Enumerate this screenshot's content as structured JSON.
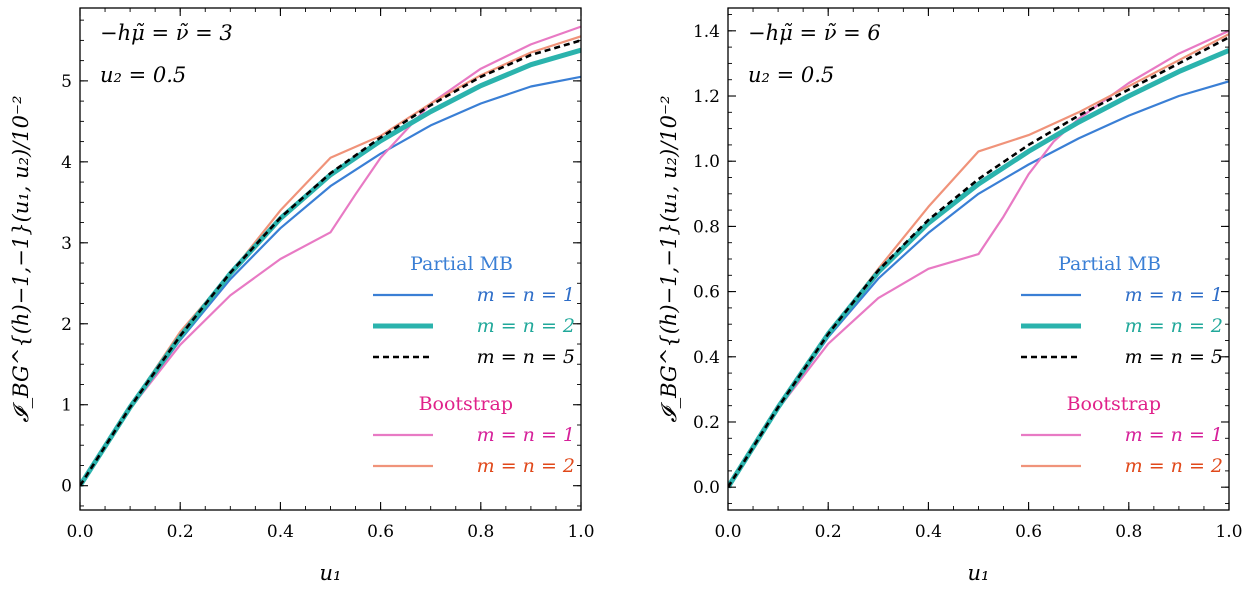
{
  "chart_data": [
    {
      "type": "line",
      "annotations": [
        "−hμ̃ = ν̃ = 3",
        "u₂ = 0.5"
      ],
      "xlabel": "u₁",
      "ylabel": "𝓘_BG^{(h)−1,−1}(u₁, u₂)/10⁻²",
      "xlim": [
        0.0,
        1.0
      ],
      "ylim": [
        -0.3,
        5.9
      ],
      "xticks": [
        0.0,
        0.2,
        0.4,
        0.6,
        0.8,
        1.0
      ],
      "xtick_labels": [
        "0.0",
        "0.2",
        "0.4",
        "0.6",
        "0.8",
        "1.0"
      ],
      "yticks": [
        0,
        1,
        2,
        3,
        4,
        5
      ],
      "ytick_labels": [
        "0",
        "1",
        "2",
        "3",
        "4",
        "5"
      ],
      "grid": false,
      "legend_position": "lower-right",
      "legend_groups": [
        {
          "title": "Partial MB",
          "title_color": "#3a7fd5",
          "entries": [
            0,
            1,
            2
          ]
        },
        {
          "title": "Bootstrap",
          "title_color": "#e0218a",
          "entries": [
            3,
            4
          ]
        }
      ],
      "series": [
        {
          "name": "m = n = 1",
          "group": "Partial MB",
          "color": "#3a7fd5",
          "label_color": "#2f6ec8",
          "style": "solid",
          "x": [
            0.0,
            0.1,
            0.2,
            0.3,
            0.4,
            0.5,
            0.6,
            0.7,
            0.8,
            0.9,
            1.0
          ],
          "y": [
            0.0,
            0.95,
            1.8,
            2.55,
            3.18,
            3.7,
            4.1,
            4.45,
            4.72,
            4.93,
            5.05
          ]
        },
        {
          "name": "m = n = 2",
          "group": "Partial MB",
          "color": "#2bb3ad",
          "label_color": "#20a89a",
          "style": "thick",
          "x": [
            0.0,
            0.1,
            0.2,
            0.3,
            0.4,
            0.5,
            0.6,
            0.7,
            0.8,
            0.9,
            1.0
          ],
          "y": [
            0.0,
            0.97,
            1.84,
            2.62,
            3.3,
            3.84,
            4.26,
            4.62,
            4.94,
            5.2,
            5.38
          ]
        },
        {
          "name": "m = n = 5",
          "group": "Partial MB",
          "color": "#000000",
          "label_color": "#000000",
          "style": "dashed",
          "x": [
            0.0,
            0.1,
            0.2,
            0.3,
            0.4,
            0.5,
            0.6,
            0.7,
            0.8,
            0.9,
            1.0
          ],
          "y": [
            0.0,
            0.97,
            1.85,
            2.63,
            3.31,
            3.86,
            4.3,
            4.7,
            5.05,
            5.32,
            5.5
          ]
        },
        {
          "name": "m = n = 1",
          "group": "Bootstrap",
          "color": "#e87ac4",
          "label_color": "#d6219a",
          "style": "solid",
          "x": [
            0.0,
            0.1,
            0.2,
            0.3,
            0.4,
            0.5,
            0.55,
            0.6,
            0.7,
            0.8,
            0.9,
            1.0
          ],
          "y": [
            0.0,
            0.95,
            1.74,
            2.35,
            2.8,
            3.13,
            3.6,
            4.05,
            4.72,
            5.15,
            5.45,
            5.67
          ]
        },
        {
          "name": "m = n = 2",
          "group": "Bootstrap",
          "color": "#f0937a",
          "label_color": "#e0481a",
          "style": "solid",
          "x": [
            0.0,
            0.1,
            0.2,
            0.3,
            0.4,
            0.5,
            0.6,
            0.7,
            0.8,
            0.9,
            1.0
          ],
          "y": [
            0.0,
            0.98,
            1.9,
            2.62,
            3.4,
            4.05,
            4.32,
            4.72,
            5.07,
            5.35,
            5.55
          ]
        }
      ]
    },
    {
      "type": "line",
      "annotations": [
        "−hμ̃ = ν̃ = 6",
        "u₂ = 0.5"
      ],
      "xlabel": "u₁",
      "ylabel": "𝓘_BG^{(h)−1,−1}(u₁, u₂)/10⁻²",
      "xlim": [
        0.0,
        1.0
      ],
      "ylim": [
        -0.07,
        1.47
      ],
      "xticks": [
        0.0,
        0.2,
        0.4,
        0.6,
        0.8,
        1.0
      ],
      "xtick_labels": [
        "0.0",
        "0.2",
        "0.4",
        "0.6",
        "0.8",
        "1.0"
      ],
      "yticks": [
        0.0,
        0.2,
        0.4,
        0.6,
        0.8,
        1.0,
        1.2,
        1.4
      ],
      "ytick_labels": [
        "0.0",
        "0.2",
        "0.4",
        "0.6",
        "0.8",
        "1.0",
        "1.2",
        "1.4"
      ],
      "grid": false,
      "legend_position": "lower-right",
      "legend_groups": [
        {
          "title": "Partial MB",
          "title_color": "#3a7fd5",
          "entries": [
            0,
            1,
            2
          ]
        },
        {
          "title": "Bootstrap",
          "title_color": "#e0218a",
          "entries": [
            3,
            4
          ]
        }
      ],
      "series": [
        {
          "name": "m = n = 1",
          "group": "Partial MB",
          "color": "#3a7fd5",
          "label_color": "#2f6ec8",
          "style": "solid",
          "x": [
            0.0,
            0.1,
            0.2,
            0.3,
            0.4,
            0.5,
            0.6,
            0.7,
            0.8,
            0.9,
            1.0
          ],
          "y": [
            0.0,
            0.24,
            0.46,
            0.64,
            0.78,
            0.9,
            0.99,
            1.07,
            1.14,
            1.2,
            1.245
          ]
        },
        {
          "name": "m = n = 2",
          "group": "Partial MB",
          "color": "#2bb3ad",
          "label_color": "#20a89a",
          "style": "thick",
          "x": [
            0.0,
            0.1,
            0.2,
            0.3,
            0.4,
            0.5,
            0.6,
            0.7,
            0.8,
            0.9,
            1.0
          ],
          "y": [
            0.0,
            0.245,
            0.47,
            0.66,
            0.81,
            0.93,
            1.03,
            1.12,
            1.2,
            1.275,
            1.34
          ]
        },
        {
          "name": "m = n = 5",
          "group": "Partial MB",
          "color": "#000000",
          "label_color": "#000000",
          "style": "dashed",
          "x": [
            0.0,
            0.1,
            0.2,
            0.3,
            0.4,
            0.5,
            0.6,
            0.7,
            0.8,
            0.9,
            1.0
          ],
          "y": [
            0.0,
            0.245,
            0.47,
            0.665,
            0.82,
            0.945,
            1.05,
            1.14,
            1.22,
            1.3,
            1.38
          ]
        },
        {
          "name": "m = n = 1",
          "group": "Bootstrap",
          "color": "#e87ac4",
          "label_color": "#d6219a",
          "style": "solid",
          "x": [
            0.0,
            0.1,
            0.2,
            0.3,
            0.4,
            0.5,
            0.55,
            0.6,
            0.65,
            0.7,
            0.8,
            0.9,
            1.0
          ],
          "y": [
            0.0,
            0.24,
            0.44,
            0.58,
            0.67,
            0.715,
            0.83,
            0.96,
            1.06,
            1.13,
            1.24,
            1.33,
            1.4
          ]
        },
        {
          "name": "m = n = 2",
          "group": "Bootstrap",
          "color": "#f0937a",
          "label_color": "#e0481a",
          "style": "solid",
          "x": [
            0.0,
            0.1,
            0.2,
            0.3,
            0.4,
            0.5,
            0.6,
            0.7,
            0.8,
            0.9,
            1.0
          ],
          "y": [
            0.0,
            0.245,
            0.47,
            0.67,
            0.86,
            1.03,
            1.08,
            1.15,
            1.23,
            1.31,
            1.39
          ]
        }
      ]
    }
  ]
}
